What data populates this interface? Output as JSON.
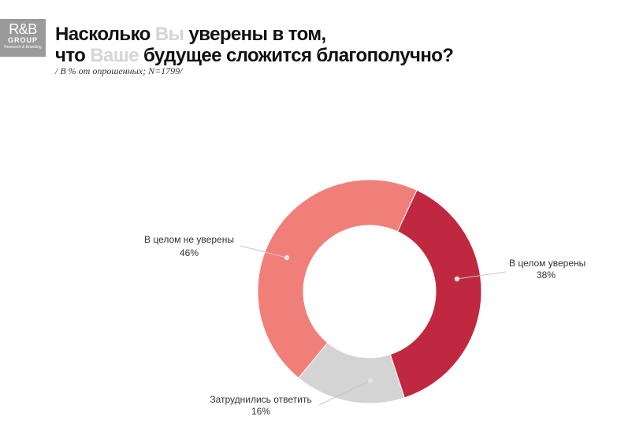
{
  "header": {
    "logo_line1": "R&B",
    "logo_line2": "GROUP",
    "logo_line3": "Research & Branding",
    "title_l1_a": "Насколько ",
    "title_l1_b": "Вы",
    "title_l1_c": " уверены в том,",
    "title_l2_a": "что ",
    "title_l2_b": "Ваше",
    "title_l2_c": " будущее сложится благополучно?",
    "subtitle": "/ В % от опрошенных; N=1799/"
  },
  "chart_data": {
    "type": "pie",
    "donut": true,
    "title": "Насколько Вы уверены в том, что Ваше будущее сложится благополучно?",
    "subtitle": "/ В % от опрошенных; N=1799/",
    "slices": [
      {
        "label": "В целом уверены",
        "value": 38,
        "value_label": "38%",
        "color": "#c0283f"
      },
      {
        "label": "Затруднились ответить",
        "value": 16,
        "value_label": "16%",
        "color": "#d4d4d4"
      },
      {
        "label": "В целом не уверены",
        "value": 46,
        "value_label": "46%",
        "color": "#f17f79"
      }
    ]
  }
}
